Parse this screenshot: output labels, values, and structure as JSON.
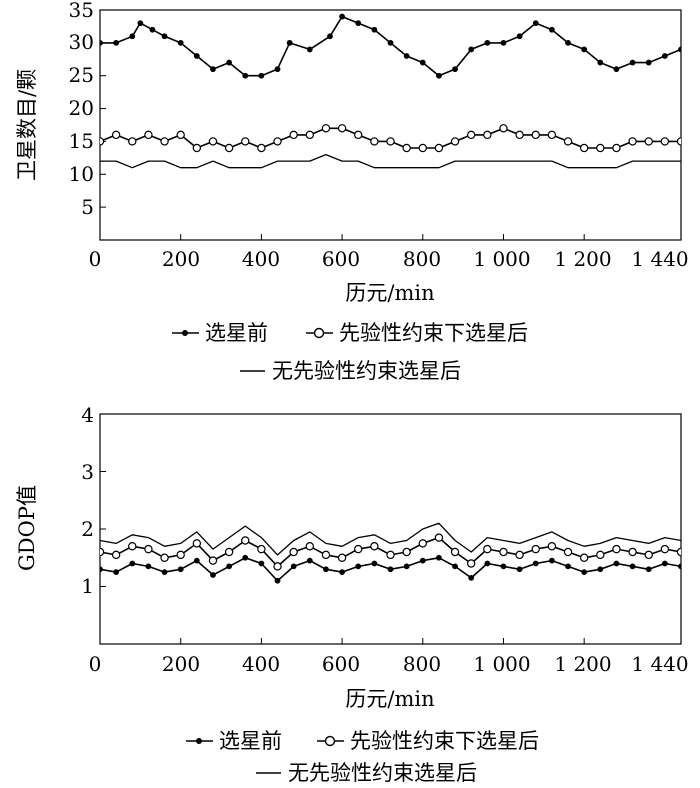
{
  "chart_data": [
    {
      "type": "line",
      "title": "",
      "xlabel": "历元/min",
      "ylabel": "卫星数目/颗",
      "xlim": [
        0,
        1440
      ],
      "ylim": [
        0,
        35
      ],
      "x_ticks": [
        0,
        200,
        400,
        600,
        800,
        1000,
        1200,
        1440
      ],
      "x_tick_labels": [
        "0",
        "200",
        "400",
        "600",
        "800",
        "1 000",
        "1 200",
        "1 440"
      ],
      "y_ticks": [
        5,
        10,
        15,
        20,
        25,
        30,
        35
      ],
      "y_tick_labels": [
        "5",
        "10",
        "15",
        "20",
        "25",
        "30",
        "35"
      ],
      "grid": false,
      "legend_position": "bottom",
      "series": [
        {
          "name": "选星前",
          "style": "line-star",
          "x": [
            0,
            40,
            80,
            100,
            130,
            160,
            200,
            240,
            280,
            320,
            360,
            400,
            440,
            470,
            520,
            570,
            600,
            640,
            680,
            720,
            760,
            800,
            840,
            880,
            920,
            960,
            1000,
            1040,
            1080,
            1120,
            1160,
            1200,
            1240,
            1280,
            1320,
            1360,
            1400,
            1440
          ],
          "values": [
            30,
            30,
            31,
            33,
            32,
            31,
            30,
            28,
            26,
            27,
            25,
            25,
            26,
            30,
            29,
            31,
            34,
            33,
            32,
            30,
            28,
            27,
            25,
            26,
            29,
            30,
            30,
            31,
            33,
            32,
            30,
            29,
            27,
            26,
            27,
            27,
            28,
            29
          ]
        },
        {
          "name": "先验性约束下选星后",
          "style": "line-circle",
          "x": [
            0,
            40,
            80,
            120,
            160,
            200,
            240,
            280,
            320,
            360,
            400,
            440,
            480,
            520,
            560,
            600,
            640,
            680,
            720,
            760,
            800,
            840,
            880,
            920,
            960,
            1000,
            1040,
            1080,
            1120,
            1160,
            1200,
            1240,
            1280,
            1320,
            1360,
            1400,
            1440
          ],
          "values": [
            15,
            16,
            15,
            16,
            15,
            16,
            14,
            15,
            14,
            15,
            14,
            15,
            16,
            16,
            17,
            17,
            16,
            15,
            15,
            14,
            14,
            14,
            15,
            16,
            16,
            17,
            16,
            16,
            16,
            15,
            14,
            14,
            14,
            15,
            15,
            15,
            15
          ]
        },
        {
          "name": "无先验性约束选星后",
          "style": "line",
          "x": [
            0,
            40,
            80,
            120,
            160,
            200,
            240,
            280,
            320,
            360,
            400,
            440,
            480,
            520,
            560,
            600,
            640,
            680,
            720,
            760,
            800,
            840,
            880,
            920,
            960,
            1000,
            1040,
            1080,
            1120,
            1160,
            1200,
            1240,
            1280,
            1320,
            1360,
            1400,
            1440
          ],
          "values": [
            12,
            12,
            11,
            12,
            12,
            11,
            11,
            12,
            11,
            11,
            11,
            12,
            12,
            12,
            13,
            12,
            12,
            11,
            11,
            11,
            11,
            11,
            12,
            12,
            12,
            12,
            12,
            12,
            12,
            11,
            11,
            11,
            11,
            12,
            12,
            12,
            12
          ]
        }
      ]
    },
    {
      "type": "line",
      "title": "",
      "xlabel": "历元/min",
      "ylabel": "GDOP值",
      "xlim": [
        0,
        1440
      ],
      "ylim": [
        0,
        4
      ],
      "x_ticks": [
        0,
        200,
        400,
        600,
        800,
        1000,
        1200,
        1440
      ],
      "x_tick_labels": [
        "0",
        "200",
        "400",
        "600",
        "800",
        "1 000",
        "1 200",
        "1 440"
      ],
      "y_ticks": [
        1,
        2,
        3,
        4
      ],
      "y_tick_labels": [
        "1",
        "2",
        "3",
        "4"
      ],
      "grid": false,
      "legend_position": "bottom",
      "series": [
        {
          "name": "选星前",
          "style": "line-star",
          "x": [
            0,
            40,
            80,
            120,
            160,
            200,
            240,
            280,
            320,
            360,
            400,
            440,
            480,
            520,
            560,
            600,
            640,
            680,
            720,
            760,
            800,
            840,
            880,
            920,
            960,
            1000,
            1040,
            1080,
            1120,
            1160,
            1200,
            1240,
            1280,
            1320,
            1360,
            1400,
            1440
          ],
          "values": [
            1.3,
            1.25,
            1.4,
            1.35,
            1.25,
            1.3,
            1.45,
            1.2,
            1.35,
            1.5,
            1.4,
            1.1,
            1.35,
            1.45,
            1.3,
            1.25,
            1.35,
            1.4,
            1.3,
            1.35,
            1.45,
            1.5,
            1.35,
            1.15,
            1.4,
            1.35,
            1.3,
            1.4,
            1.45,
            1.35,
            1.25,
            1.3,
            1.4,
            1.35,
            1.3,
            1.4,
            1.35
          ]
        },
        {
          "name": "先验性约束下选星后",
          "style": "line-circle",
          "x": [
            0,
            40,
            80,
            120,
            160,
            200,
            240,
            280,
            320,
            360,
            400,
            440,
            480,
            520,
            560,
            600,
            640,
            680,
            720,
            760,
            800,
            840,
            880,
            920,
            960,
            1000,
            1040,
            1080,
            1120,
            1160,
            1200,
            1240,
            1280,
            1320,
            1360,
            1400,
            1440
          ],
          "values": [
            1.6,
            1.55,
            1.7,
            1.65,
            1.5,
            1.55,
            1.75,
            1.45,
            1.6,
            1.8,
            1.65,
            1.35,
            1.6,
            1.7,
            1.55,
            1.5,
            1.65,
            1.7,
            1.55,
            1.6,
            1.75,
            1.85,
            1.6,
            1.4,
            1.65,
            1.6,
            1.55,
            1.65,
            1.7,
            1.6,
            1.5,
            1.55,
            1.65,
            1.6,
            1.55,
            1.65,
            1.6
          ]
        },
        {
          "name": "无先验性约束选星后",
          "style": "line",
          "x": [
            0,
            40,
            80,
            120,
            160,
            200,
            240,
            280,
            320,
            360,
            400,
            440,
            480,
            520,
            560,
            600,
            640,
            680,
            720,
            760,
            800,
            840,
            880,
            920,
            960,
            1000,
            1040,
            1080,
            1120,
            1160,
            1200,
            1240,
            1280,
            1320,
            1360,
            1400,
            1440
          ],
          "values": [
            1.8,
            1.75,
            1.9,
            1.85,
            1.7,
            1.75,
            1.95,
            1.65,
            1.85,
            2.05,
            1.85,
            1.55,
            1.8,
            1.95,
            1.75,
            1.7,
            1.85,
            1.9,
            1.75,
            1.8,
            2.0,
            2.1,
            1.8,
            1.6,
            1.85,
            1.8,
            1.75,
            1.85,
            1.95,
            1.8,
            1.7,
            1.75,
            1.85,
            1.8,
            1.75,
            1.85,
            1.8
          ]
        }
      ]
    }
  ]
}
